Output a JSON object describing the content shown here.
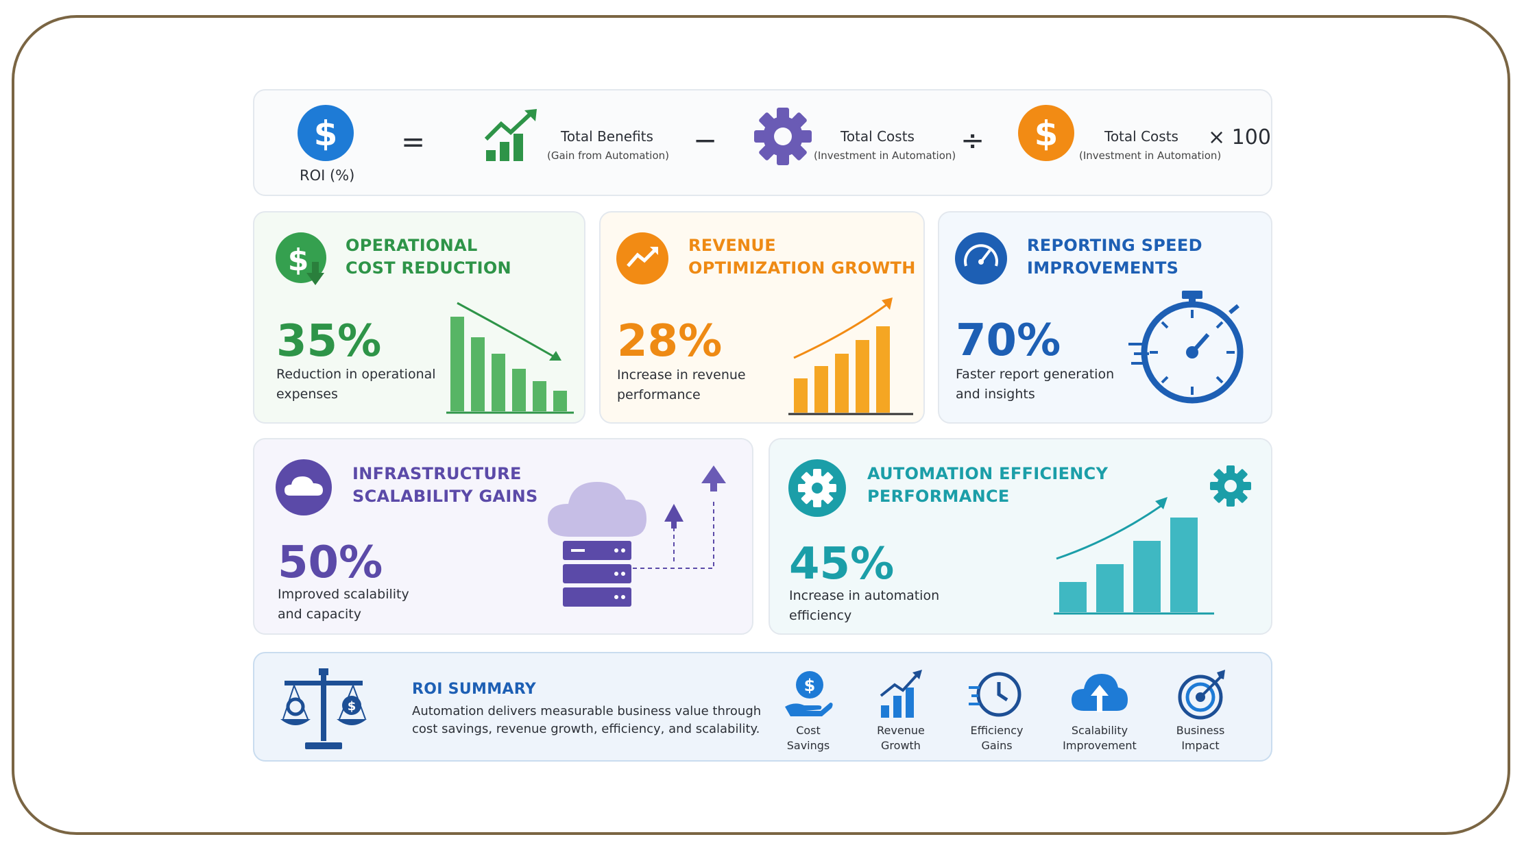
{
  "formula": {
    "roi_label": "ROI (%)",
    "equals": "=",
    "benefits_title": "Total Benefits",
    "benefits_sub": "(Gain from Automation)",
    "minus": "−",
    "costs_title": "Total Costs",
    "costs_sub": "(Investment in Automation)",
    "divide": "÷",
    "costs2_title": "Total Costs",
    "costs2_sub": "(Investment in Automation)",
    "times": "× 100"
  },
  "cards": {
    "operational": {
      "title1": "OPERATIONAL",
      "title2": "COST REDUCTION",
      "value": "35%",
      "desc1": "Reduction in operational",
      "desc2": "expenses",
      "color": "#2e9448"
    },
    "revenue": {
      "title1": "REVENUE",
      "title2": "OPTIMIZATION GROWTH",
      "value": "28%",
      "desc1": "Increase in revenue",
      "desc2": "performance",
      "color": "#ee8a14"
    },
    "reporting": {
      "title1": "REPORTING SPEED",
      "title2": "IMPROVEMENTS",
      "value": "70%",
      "desc1": "Faster report generation",
      "desc2": "and insights",
      "color": "#1d5fb4"
    },
    "infrastructure": {
      "title1": "INFRASTRUCTURE",
      "title2": "SCALABILITY GAINS",
      "value": "50%",
      "desc1": "Improved scalability",
      "desc2": "and capacity",
      "color": "#5b4aa8"
    },
    "automation": {
      "title1": "AUTOMATION EFFICIENCY",
      "title2": "PERFORMANCE",
      "value": "45%",
      "desc1": "Increase in automation",
      "desc2": "efficiency",
      "color": "#1b9ea8"
    }
  },
  "summary": {
    "title": "ROI SUMMARY",
    "text1": "Automation delivers measurable business value through",
    "text2": "cost savings, revenue growth, efficiency, and scalability.",
    "items": [
      {
        "l1": "Cost",
        "l2": "Savings",
        "icon": "hand-dollar-icon"
      },
      {
        "l1": "Revenue",
        "l2": "Growth",
        "icon": "bar-growth-icon"
      },
      {
        "l1": "Efficiency",
        "l2": "Gains",
        "icon": "clock-icon"
      },
      {
        "l1": "Scalability",
        "l2": "Improvement",
        "icon": "cloud-upload-icon"
      },
      {
        "l1": "Business",
        "l2": "Impact",
        "icon": "target-icon"
      }
    ]
  }
}
